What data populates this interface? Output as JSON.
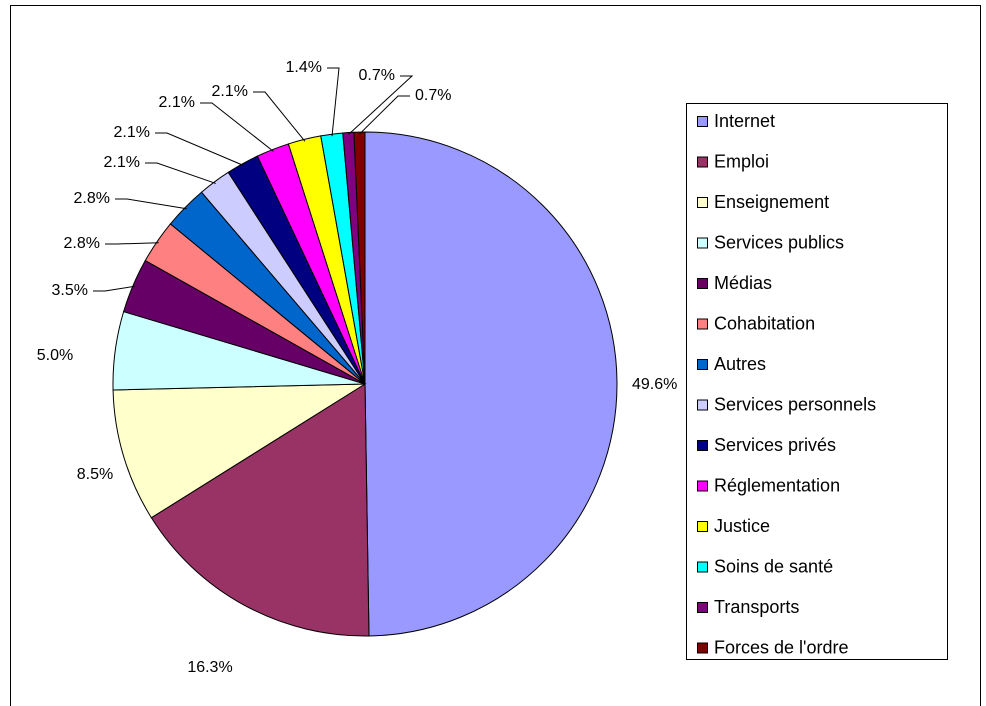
{
  "chart_data": {
    "type": "pie",
    "categories": [
      "Internet",
      "Emploi",
      "Enseignement",
      "Services publics",
      "Médias",
      "Cohabitation",
      "Autres",
      "Services personnels",
      "Services privés",
      "Réglementation",
      "Justice",
      "Soins de santé",
      "Transports",
      "Forces de l'ordre"
    ],
    "values": [
      49.6,
      16.3,
      8.5,
      5.0,
      3.5,
      2.8,
      2.8,
      2.1,
      2.1,
      2.1,
      2.1,
      1.4,
      0.7,
      0.7
    ],
    "value_labels": [
      "49.6%",
      "16.3%",
      "8.5%",
      "5.0%",
      "3.5%",
      "2.8%",
      "2.8%",
      "2.1%",
      "2.1%",
      "2.1%",
      "2.1%",
      "1.4%",
      "0.7%",
      "0.7%"
    ],
    "colors": [
      "#9999ff",
      "#993366",
      "#ffffcc",
      "#ccffff",
      "#660066",
      "#ff8080",
      "#0066cc",
      "#ccccff",
      "#000080",
      "#ff00ff",
      "#ffff00",
      "#00ffff",
      "#800080",
      "#800000"
    ],
    "legend": "right"
  }
}
